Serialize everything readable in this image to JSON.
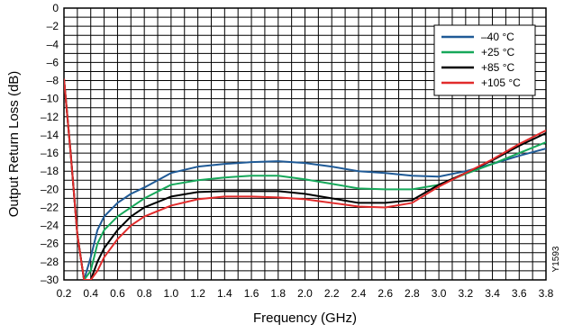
{
  "chart_data": {
    "type": "line",
    "xlabel": "Frequency (GHz)",
    "ylabel": "Output Return Loss (dB)",
    "xlim": [
      0.2,
      3.8
    ],
    "ylim": [
      -30,
      0
    ],
    "x_ticks": [
      "0.2",
      "0.4",
      "0.6",
      "0.8",
      "1.0",
      "1.2",
      "1.4",
      "1.6",
      "1.8",
      "2.0",
      "2.2",
      "2.4",
      "2.6",
      "2.8",
      "3.0",
      "3.2",
      "3.4",
      "3.6",
      "3.8"
    ],
    "y_ticks": [
      "0",
      "–2",
      "–4",
      "–6",
      "–8",
      "–10",
      "–12",
      "–14",
      "–16",
      "–18",
      "–20",
      "–22",
      "–24",
      "–26",
      "–28",
      "–30"
    ],
    "grid": true,
    "legend_position": "top-right",
    "code_label": "Y1593",
    "series": [
      {
        "name": "–40 °C",
        "color": "#1f5a96",
        "x": [
          0.2,
          0.25,
          0.3,
          0.35,
          0.4,
          0.45,
          0.5,
          0.6,
          0.7,
          0.8,
          1.0,
          1.2,
          1.4,
          1.6,
          1.8,
          2.0,
          2.2,
          2.4,
          2.6,
          2.8,
          3.0,
          3.2,
          3.4,
          3.6,
          3.8
        ],
        "y": [
          -7.8,
          -16,
          -25,
          -30,
          -27.5,
          -24.5,
          -23,
          -21.5,
          -20.5,
          -19.8,
          -18.2,
          -17.5,
          -17.2,
          -17.0,
          -16.9,
          -17.1,
          -17.5,
          -18.0,
          -18.2,
          -18.5,
          -18.6,
          -18.0,
          -17.2,
          -16.3,
          -15.5
        ]
      },
      {
        "name": "+25 °C",
        "color": "#16a85a",
        "x": [
          0.2,
          0.25,
          0.3,
          0.35,
          0.4,
          0.45,
          0.5,
          0.6,
          0.7,
          0.8,
          1.0,
          1.2,
          1.4,
          1.6,
          1.8,
          2.0,
          2.2,
          2.4,
          2.6,
          2.8,
          3.0,
          3.2,
          3.4,
          3.6,
          3.8
        ],
        "y": [
          -7.8,
          -16,
          -25,
          -30,
          -29,
          -26,
          -24.5,
          -23,
          -22,
          -21,
          -19.5,
          -19.0,
          -18.7,
          -18.5,
          -18.5,
          -18.9,
          -19.4,
          -19.9,
          -20.0,
          -20.0,
          -19.5,
          -18.3,
          -17.2,
          -16.0,
          -14.8
        ]
      },
      {
        "name": "+85 °C",
        "color": "#000000",
        "x": [
          0.2,
          0.25,
          0.3,
          0.35,
          0.4,
          0.45,
          0.5,
          0.6,
          0.7,
          0.8,
          1.0,
          1.2,
          1.4,
          1.6,
          1.8,
          2.0,
          2.2,
          2.4,
          2.6,
          2.8,
          3.0,
          3.2,
          3.4,
          3.6,
          3.8
        ],
        "y": [
          -7.8,
          -16,
          -25,
          -30,
          -30,
          -28,
          -26.5,
          -24.5,
          -23,
          -22,
          -20.8,
          -20.3,
          -20.2,
          -20.2,
          -20.2,
          -20.5,
          -21.0,
          -21.5,
          -21.5,
          -21.2,
          -19.5,
          -18.2,
          -16.8,
          -15.2,
          -13.8
        ]
      },
      {
        "name": "+105 °C",
        "color": "#e12b2b",
        "x": [
          0.2,
          0.25,
          0.3,
          0.35,
          0.4,
          0.45,
          0.5,
          0.6,
          0.7,
          0.8,
          1.0,
          1.2,
          1.4,
          1.6,
          1.8,
          2.0,
          2.2,
          2.4,
          2.6,
          2.8,
          3.0,
          3.2,
          3.4,
          3.6,
          3.8
        ],
        "y": [
          -7.8,
          -16,
          -25,
          -30,
          -30,
          -29,
          -27.5,
          -25.5,
          -24,
          -23,
          -21.8,
          -21.1,
          -20.8,
          -20.8,
          -20.9,
          -21.1,
          -21.5,
          -21.9,
          -22.0,
          -21.5,
          -19.7,
          -18.2,
          -16.7,
          -15.0,
          -13.5
        ]
      }
    ]
  }
}
